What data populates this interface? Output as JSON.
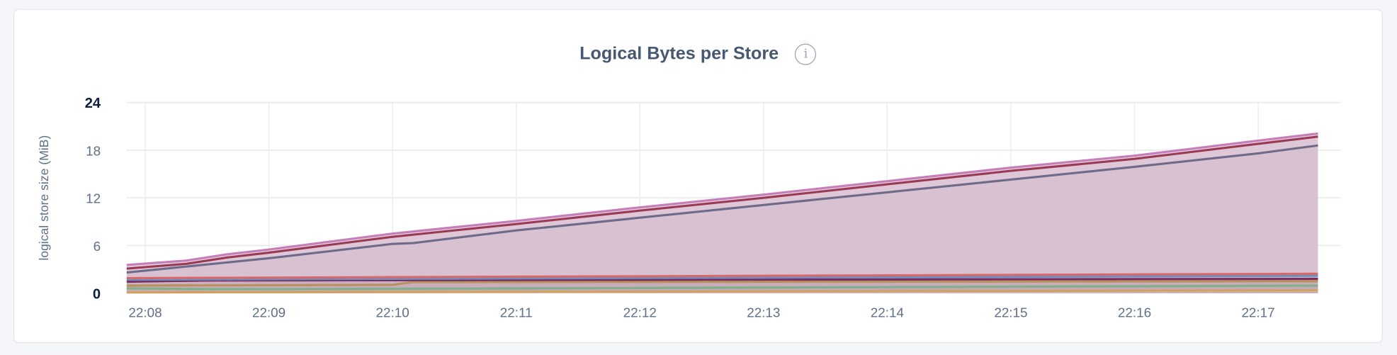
{
  "chart_data": {
    "type": "line",
    "title": "Logical Bytes per Store",
    "info_icon": "info-icon",
    "ylabel": "logical store size (MiB)",
    "xlabel": "",
    "ylim": [
      0,
      24
    ],
    "yticks": [
      "0",
      "6",
      "12",
      "18",
      "24"
    ],
    "xticks": [
      "22:08",
      "22:09",
      "22:10",
      "22:11",
      "22:12",
      "22:13",
      "22:14",
      "22:15",
      "22:16",
      "22:17"
    ],
    "xlim": [
      "22:07:51",
      "22:17:29"
    ],
    "grid": true,
    "area_fill": true,
    "series": [
      {
        "color": "#d7d0d4",
        "fill": "#e4d5df",
        "points": [
          [
            "22:07:51",
            0.1
          ],
          [
            "22:17:29",
            0.3
          ]
        ]
      },
      {
        "color": "#d4a060",
        "points": [
          [
            "22:07:51",
            0.1
          ],
          [
            "22:12",
            0.2
          ],
          [
            "22:17:29",
            0.35
          ]
        ]
      },
      {
        "color": "#7fb08a",
        "points": [
          [
            "22:07:51",
            0.6
          ],
          [
            "22:08:30",
            0.5
          ],
          [
            "22:10",
            0.55
          ],
          [
            "22:17:29",
            0.95
          ]
        ]
      },
      {
        "color": "#b89258",
        "points": [
          [
            "22:07:51",
            0.95
          ],
          [
            "22:10",
            1.05
          ],
          [
            "22:10:10",
            1.4
          ],
          [
            "22:17:29",
            1.5
          ]
        ]
      },
      {
        "color": "#7b2d62",
        "points": [
          [
            "22:07:51",
            1.45
          ],
          [
            "22:08:30",
            1.6
          ],
          [
            "22:17:29",
            1.8
          ]
        ]
      },
      {
        "color": "#6a8fc0",
        "points": [
          [
            "22:07:51",
            1.7
          ],
          [
            "22:17:29",
            2.2
          ]
        ]
      },
      {
        "color": "#d9686b",
        "points": [
          [
            "22:07:51",
            1.9
          ],
          [
            "22:17:29",
            2.45
          ]
        ]
      },
      {
        "color": "#6e6a8a",
        "points": [
          [
            "22:07:51",
            2.6
          ],
          [
            "22:09",
            4.4
          ],
          [
            "22:10",
            6.2
          ],
          [
            "22:10:10",
            6.3
          ],
          [
            "22:11",
            7.9
          ],
          [
            "22:12",
            9.5
          ],
          [
            "22:13",
            11.1
          ],
          [
            "22:14",
            12.7
          ],
          [
            "22:15",
            14.3
          ],
          [
            "22:16",
            15.9
          ],
          [
            "22:17",
            17.6
          ],
          [
            "22:17:29",
            18.6
          ]
        ]
      },
      {
        "color": "#9b3a55",
        "points": [
          [
            "22:07:51",
            3.1
          ],
          [
            "22:08:20",
            3.7
          ],
          [
            "22:08:40",
            4.5
          ],
          [
            "22:09",
            5.1
          ],
          [
            "22:10",
            7.1
          ],
          [
            "22:11",
            8.7
          ],
          [
            "22:12",
            10.4
          ],
          [
            "22:13",
            12.0
          ],
          [
            "22:14",
            13.7
          ],
          [
            "22:15",
            15.4
          ],
          [
            "22:16",
            16.9
          ],
          [
            "22:17",
            18.8
          ],
          [
            "22:17:29",
            19.7
          ]
        ]
      },
      {
        "color": "#c77dba",
        "points": [
          [
            "22:07:51",
            3.55
          ],
          [
            "22:08:20",
            4.1
          ],
          [
            "22:08:40",
            4.9
          ],
          [
            "22:09",
            5.5
          ],
          [
            "22:10",
            7.5
          ],
          [
            "22:11",
            9.1
          ],
          [
            "22:12",
            10.8
          ],
          [
            "22:13",
            12.4
          ],
          [
            "22:14",
            14.1
          ],
          [
            "22:15",
            15.8
          ],
          [
            "22:16",
            17.3
          ],
          [
            "22:17",
            19.2
          ],
          [
            "22:17:29",
            20.1
          ]
        ]
      }
    ]
  }
}
